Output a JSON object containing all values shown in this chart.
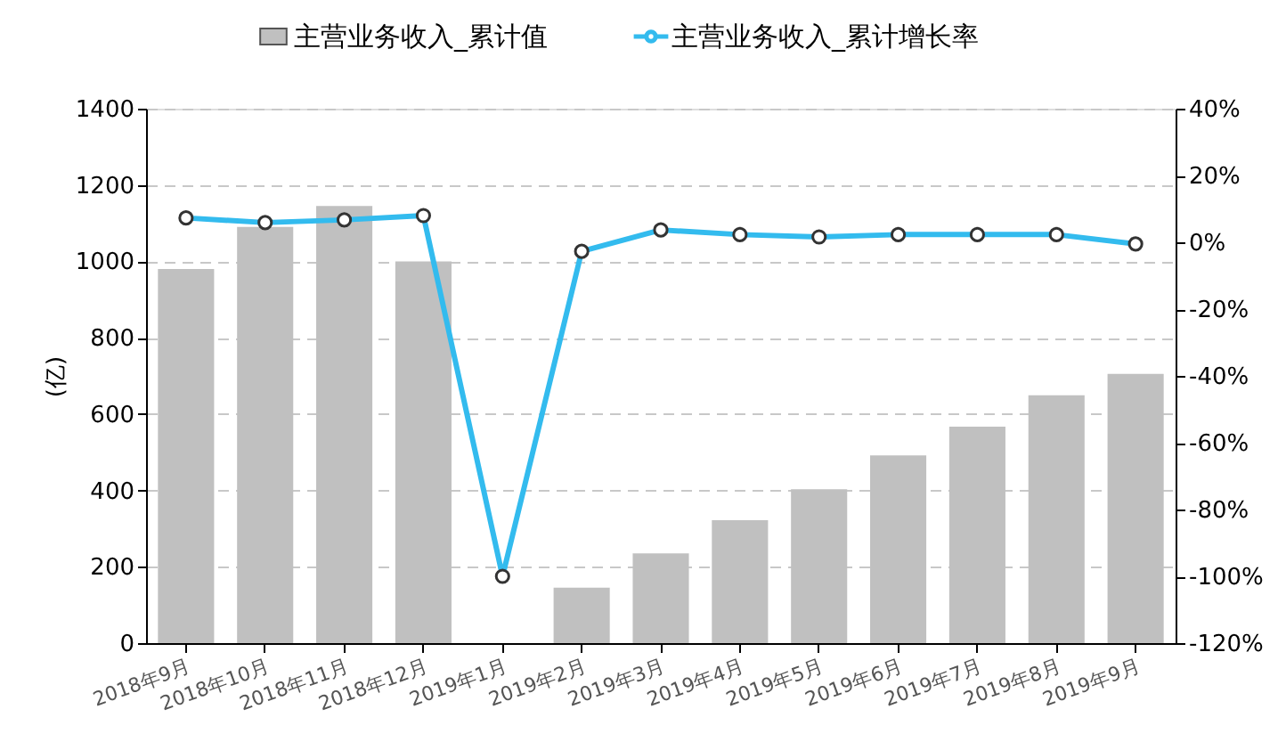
{
  "chart_data": {
    "type": "bar",
    "ylabel": "(亿)",
    "categories": [
      "2018年9月",
      "2018年10月",
      "2018年11月",
      "2018年12月",
      "2019年1月",
      "2019年2月",
      "2019年3月",
      "2019年4月",
      "2019年5月",
      "2019年6月",
      "2019年7月",
      "2019年8月",
      "2019年9月"
    ],
    "series": [
      {
        "name": "主营业务收入_累计值",
        "color": "#c0c0c0",
        "values": [
          980,
          1090,
          1145,
          1000,
          null,
          145,
          235,
          322,
          403,
          492,
          567,
          649,
          705
        ]
      },
      {
        "name": "主营业务收入_累计增长率",
        "type": "line",
        "axis": "y2",
        "color": "#33bbee",
        "marker": "circle",
        "line_style": "solid",
        "values": [
          7.3,
          5.9,
          6.7,
          8.0,
          -100,
          -2.7,
          3.7,
          2.3,
          1.6,
          2.3,
          2.3,
          2.3,
          -0.5
        ]
      }
    ],
    "ylim": [
      0,
      1400
    ],
    "yticks": [
      0,
      200,
      400,
      600,
      800,
      1000,
      1200,
      1400
    ],
    "y2lim": [
      -120,
      40
    ],
    "y2ticks": [
      {
        "value": -120,
        "label": "-120%"
      },
      {
        "value": -100,
        "label": "-100%"
      },
      {
        "value": -80,
        "label": "-80%"
      },
      {
        "value": -60,
        "label": "-60%"
      },
      {
        "value": -40,
        "label": "-40%"
      },
      {
        "value": -20,
        "label": "-20%"
      },
      {
        "value": 0,
        "label": "0%"
      },
      {
        "value": 20,
        "label": "20%"
      },
      {
        "value": 40,
        "label": "40%"
      }
    ],
    "grid": "y",
    "legend": "top"
  }
}
